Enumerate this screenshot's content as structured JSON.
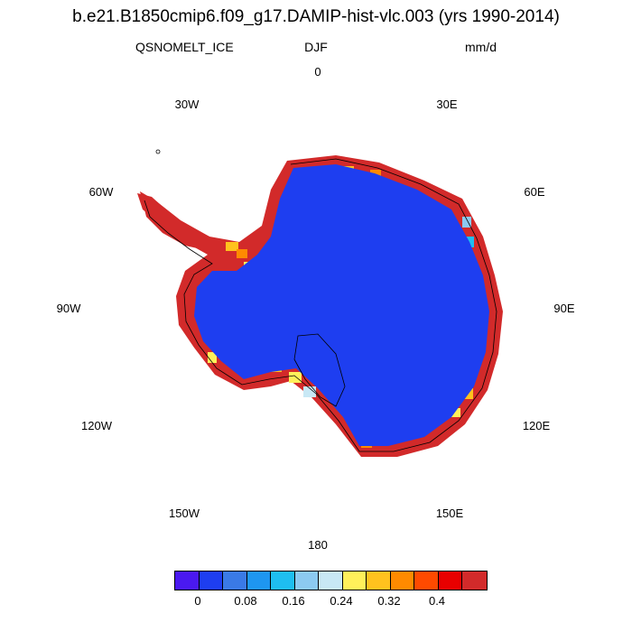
{
  "title": "b.e21.B1850cmip6.f09_g17.DAMIP-hist-vlc.003 (yrs 1990-2014)",
  "variable": "QSNOMELT_ICE",
  "season": "DJF",
  "units": "mm/d",
  "longitude_labels": [
    "0",
    "30E",
    "60E",
    "90E",
    "120E",
    "150E",
    "180",
    "150W",
    "120W",
    "90W",
    "60W",
    "30W"
  ],
  "colorbar": {
    "colors": [
      "#4a19f0",
      "#1e3ef0",
      "#3a7ae6",
      "#1e96f0",
      "#1ebef0",
      "#8ccaf0",
      "#c8e8f5",
      "#fff05a",
      "#ffc21e",
      "#ff8a00",
      "#ff4a00",
      "#e80000",
      "#d22a2a"
    ],
    "tick_labels": [
      "0",
      "0.08",
      "0.16",
      "0.24",
      "0.32",
      "0.4"
    ]
  },
  "map": {
    "ice_sheet_color": "#1e3ef0",
    "margin_color": "#d22a2a"
  }
}
